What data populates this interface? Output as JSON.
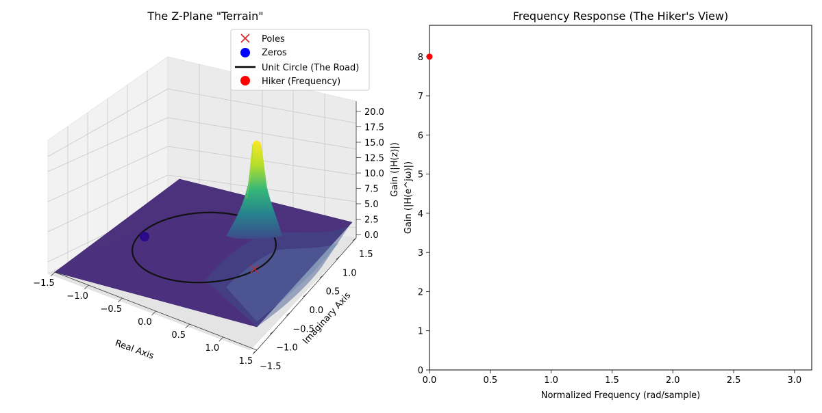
{
  "chart_data": [
    {
      "type": "surface",
      "title": "The Z-Plane \"Terrain\"",
      "xlabel": "Real Axis",
      "ylabel": "Imaginary Axis",
      "zlabel": "Gain (|H(z)|)",
      "xlim": [
        -1.5,
        1.5
      ],
      "ylim": [
        -1.5,
        1.5
      ],
      "zlim": [
        0,
        21
      ],
      "xticks": [
        "−1.5",
        "−1.0",
        "−0.5",
        "0.0",
        "0.5",
        "1.0",
        "1.5"
      ],
      "yticks": [
        "−1.5",
        "−1.0",
        "−0.5",
        "0.0",
        "0.5",
        "1.0",
        "1.5"
      ],
      "zticks": [
        "0.0",
        "2.5",
        "5.0",
        "7.5",
        "10.0",
        "12.5",
        "15.0",
        "17.5",
        "20.0"
      ],
      "grid": true,
      "colormap": "viridis",
      "poles": [
        {
          "re": 0.9,
          "im": 0.0
        }
      ],
      "zeros": [
        {
          "re": -1.0,
          "im": 0.0
        }
      ],
      "unit_circle_radius": 1.0,
      "hiker": {
        "re": 1.0,
        "im": 0.0
      },
      "legend": {
        "placement": "upper-right",
        "entries": [
          {
            "label": "Poles",
            "marker": "x",
            "color": "#d62728"
          },
          {
            "label": "Zeros",
            "marker": "circle",
            "color": "#0000ff"
          },
          {
            "label": "Unit Circle (The Road)",
            "marker": "line",
            "color": "#000000"
          },
          {
            "label": "Hiker (Frequency)",
            "marker": "circle",
            "color": "#ff0000"
          }
        ]
      }
    },
    {
      "type": "line",
      "title": "Frequency Response (The Hiker's View)",
      "xlabel": "Normalized Frequency (rad/sample)",
      "ylabel": "Gain (|H(e^jω)|)",
      "xlim": [
        0,
        3.1416
      ],
      "ylim": [
        0,
        8.8
      ],
      "xticks": [
        0,
        0.5,
        1.0,
        1.5,
        2.0,
        2.5,
        3.0
      ],
      "xtick_labels": [
        "0.0",
        "0.5",
        "1.0",
        "1.5",
        "2.0",
        "2.5",
        "3.0"
      ],
      "yticks": [
        0,
        1,
        2,
        3,
        4,
        5,
        6,
        7,
        8
      ],
      "yticks_labels": [
        "0",
        "1",
        "2",
        "3",
        "4",
        "5",
        "6",
        "7",
        "8"
      ],
      "series": [
        {
          "points": [
            {
              "x": 0.0,
              "y": 8.0
            }
          ],
          "color": "#ff0000"
        }
      ]
    }
  ]
}
